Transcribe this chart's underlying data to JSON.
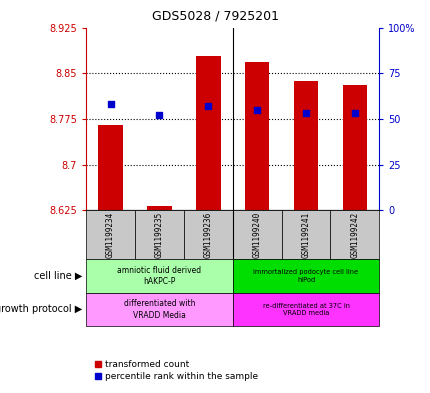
{
  "title": "GDS5028 / 7925201",
  "samples": [
    "GSM1199234",
    "GSM1199235",
    "GSM1199236",
    "GSM1199240",
    "GSM1199241",
    "GSM1199242"
  ],
  "red_values": [
    8.765,
    8.632,
    8.878,
    8.868,
    8.838,
    8.83
  ],
  "blue_percentiles": [
    58,
    52,
    57,
    55,
    53,
    53
  ],
  "ylim_left": [
    8.625,
    8.925
  ],
  "ylim_right": [
    0,
    100
  ],
  "yticks_left": [
    8.625,
    8.7,
    8.775,
    8.85,
    8.925
  ],
  "yticks_right": [
    0,
    25,
    50,
    75,
    100
  ],
  "ytick_labels_left": [
    "8.625",
    "8.7",
    "8.775",
    "8.85",
    "8.925"
  ],
  "ytick_labels_right": [
    "0",
    "25",
    "50",
    "75",
    "100%"
  ],
  "cell_line_group1_label": "amniotic fluid derived\nhAKPC-P",
  "cell_line_group2_label": "immortalized podocyte cell line\nhIPod",
  "cell_line_group1_color": "#AAFFAA",
  "cell_line_group2_color": "#00DD00",
  "growth_group1_label": "differentiated with\nVRADD Media",
  "growth_group2_label": "re-differentiated at 37C in\nVRADD media",
  "growth_group1_color": "#FF99FF",
  "growth_group2_color": "#FF33FF",
  "bar_bottom": 8.625,
  "bar_color": "#CC0000",
  "dot_color": "#0000CC",
  "left_axis_color": "#CC0000",
  "right_axis_color": "#0000CC",
  "grid_ticks": [
    8.7,
    8.775,
    8.85
  ],
  "legend_red": "transformed count",
  "legend_blue": "percentile rank within the sample",
  "label_cell_line": "cell line",
  "label_growth": "growth protocol"
}
